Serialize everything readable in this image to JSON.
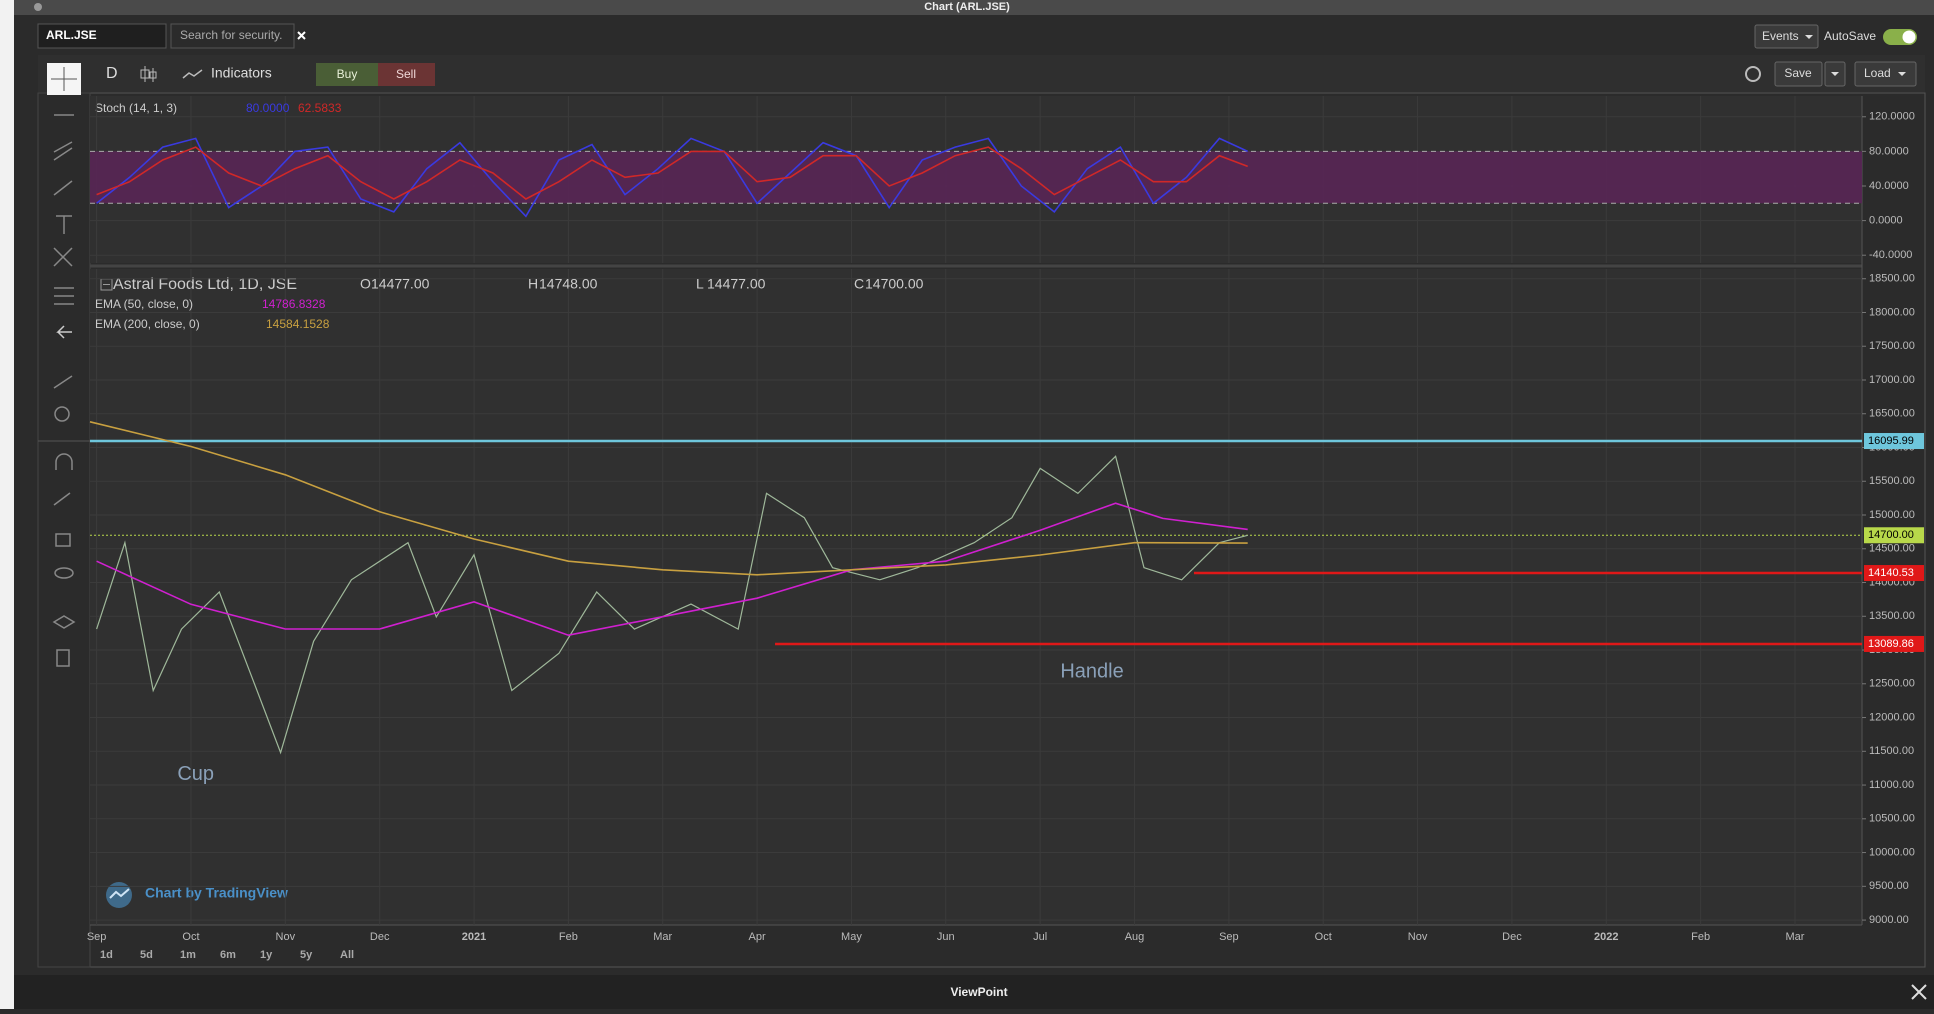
{
  "window": {
    "title": "Chart (ARL.JSE)"
  },
  "toolbar": {
    "symbol": "ARL.JSE",
    "search_placeholder": "Search for security.",
    "events": "Events",
    "autosave": "AutoSave",
    "interval": "D",
    "indicators": "Indicators",
    "buy": "Buy",
    "sell": "Sell",
    "save": "Save",
    "load": "Load"
  },
  "chart_data": [
    {
      "type": "line",
      "title": "Stoch (14, 1, 3)",
      "xlim": [
        -0.07,
        18.71
      ],
      "ylim": [
        -49,
        144
      ],
      "yticks": [
        {
          "value": 120,
          "label": "120.0000"
        },
        {
          "value": 80,
          "label": "80.0000"
        },
        {
          "value": 40,
          "label": "40.0000"
        },
        {
          "value": 0,
          "label": "0.0000"
        },
        {
          "value": -40,
          "label": "-40.0000"
        }
      ],
      "band": [
        20,
        80
      ],
      "band_color": "#5a2457",
      "grid": true,
      "series": [
        {
          "color": "#3a3ae0",
          "last_value_label": "80.0000",
          "x": [
            0,
            0.35,
            0.7,
            1.05,
            1.4,
            1.75,
            2.1,
            2.45,
            2.8,
            3.15,
            3.5,
            3.85,
            4.2,
            4.55,
            4.9,
            5.25,
            5.6,
            5.95,
            6.3,
            6.65,
            7.0,
            7.35,
            7.7,
            8.05,
            8.4,
            8.75,
            9.1,
            9.45,
            9.8,
            10.15,
            10.5,
            10.85,
            11.2,
            11.55,
            11.9,
            12.2
          ],
          "values": [
            20,
            50,
            85,
            95,
            15,
            40,
            80,
            85,
            25,
            10,
            60,
            90,
            45,
            5,
            70,
            88,
            30,
            60,
            95,
            80,
            20,
            55,
            90,
            75,
            15,
            70,
            85,
            95,
            40,
            10,
            60,
            85,
            20,
            50,
            95,
            80
          ]
        },
        {
          "color": "#d02828",
          "last_value_label": "62.5833",
          "x": [
            0,
            0.35,
            0.7,
            1.05,
            1.4,
            1.75,
            2.1,
            2.45,
            2.8,
            3.15,
            3.5,
            3.85,
            4.2,
            4.55,
            4.9,
            5.25,
            5.6,
            5.95,
            6.3,
            6.65,
            7.0,
            7.35,
            7.7,
            8.05,
            8.4,
            8.75,
            9.1,
            9.45,
            9.8,
            10.15,
            10.5,
            10.85,
            11.2,
            11.55,
            11.9,
            12.2
          ],
          "values": [
            30,
            45,
            70,
            85,
            55,
            40,
            60,
            75,
            45,
            25,
            45,
            70,
            55,
            25,
            45,
            70,
            50,
            55,
            80,
            80,
            45,
            50,
            75,
            75,
            40,
            55,
            75,
            85,
            60,
            30,
            50,
            70,
            45,
            45,
            75,
            62.5833
          ]
        }
      ]
    },
    {
      "type": "line",
      "title": "Astral Foods Ltd, 1D, JSE",
      "ohlc": [
        {
          "prefix": "O",
          "label": "14477.00"
        },
        {
          "prefix": "H",
          "label": "14748.00"
        },
        {
          "prefix": "L",
          "label": "14477.00"
        },
        {
          "prefix": "C",
          "label": "14700.00"
        }
      ],
      "xlim": [
        -0.07,
        18.71
      ],
      "ylim": [
        8927,
        18644
      ],
      "xticks": [
        {
          "value": 0,
          "label": "Sep"
        },
        {
          "value": 1,
          "label": "Oct"
        },
        {
          "value": 2,
          "label": "Nov"
        },
        {
          "value": 3,
          "label": "Dec"
        },
        {
          "value": 4,
          "label": "2021"
        },
        {
          "value": 5,
          "label": "Feb"
        },
        {
          "value": 6,
          "label": "Mar"
        },
        {
          "value": 7,
          "label": "Apr"
        },
        {
          "value": 8,
          "label": "May"
        },
        {
          "value": 9,
          "label": "Jun"
        },
        {
          "value": 10,
          "label": "Jul"
        },
        {
          "value": 11,
          "label": "Aug"
        },
        {
          "value": 12,
          "label": "Sep"
        },
        {
          "value": 13,
          "label": "Oct"
        },
        {
          "value": 14,
          "label": "Nov"
        },
        {
          "value": 15,
          "label": "Dec"
        },
        {
          "value": 16,
          "label": "2022"
        },
        {
          "value": 17,
          "label": "Feb"
        },
        {
          "value": 18,
          "label": "Mar"
        }
      ],
      "yticks": [
        {
          "value": 18500,
          "label": "18500.00"
        },
        {
          "value": 18000,
          "label": "18000.00"
        },
        {
          "value": 17500,
          "label": "17500.00"
        },
        {
          "value": 17000,
          "label": "17000.00"
        },
        {
          "value": 16500,
          "label": "16500.00"
        },
        {
          "value": 16000,
          "label": "16000.00"
        },
        {
          "value": 15500,
          "label": "15500.00"
        },
        {
          "value": 15000,
          "label": "15000.00"
        },
        {
          "value": 14500,
          "label": "14500.00"
        },
        {
          "value": 14000,
          "label": "14000.00"
        },
        {
          "value": 13500,
          "label": "13500.00"
        },
        {
          "value": 13000,
          "label": "13000.00"
        },
        {
          "value": 12500,
          "label": "12500.00"
        },
        {
          "value": 12000,
          "label": "12000.00"
        },
        {
          "value": 11500,
          "label": "11500.00"
        },
        {
          "value": 11000,
          "label": "11000.00"
        },
        {
          "value": 10500,
          "label": "10500.00"
        },
        {
          "value": 10000,
          "label": "10000.00"
        },
        {
          "value": 9500,
          "label": "9500.00"
        },
        {
          "value": 9000,
          "label": "9000.00"
        }
      ],
      "grid": true,
      "series": [
        {
          "color": "#9fb89a",
          "x": [
            0,
            0.3,
            0.6,
            0.9,
            1.3,
            1.7,
            1.95,
            2.3,
            2.7,
            3.3,
            3.6,
            4.0,
            4.4,
            4.9,
            5.3,
            5.7,
            6.3,
            6.8,
            7.1,
            7.5,
            7.8,
            8.3,
            8.7,
            9.3,
            9.7,
            10.0,
            10.4,
            10.8,
            11.1,
            11.5,
            11.9,
            12.2
          ],
          "values": [
            13310,
            14590,
            12400,
            13310,
            13860,
            12400,
            11480,
            13130,
            14040,
            14590,
            13490,
            14410,
            12400,
            12950,
            13860,
            13310,
            13680,
            13310,
            15320,
            14960,
            14220,
            14040,
            14220,
            14590,
            14960,
            15690,
            15320,
            15870,
            14220,
            14040,
            14590,
            14700
          ]
        },
        {
          "name": "EMA (50, close, 0)",
          "color": "#d020d0",
          "last_value_label": "14786.8328",
          "x": [
            0,
            1,
            2,
            3,
            4,
            5,
            6,
            7,
            8,
            9,
            10,
            10.8,
            11.3,
            12.2
          ],
          "values": [
            14316,
            13677,
            13311,
            13311,
            13713,
            13220,
            13494,
            13768,
            14188,
            14316,
            14773,
            15175,
            14950,
            14786.8328
          ]
        },
        {
          "name": "EMA (200, close, 0)",
          "color": "#c8a040",
          "last_value_label": "14584.1528",
          "x": [
            -0.07,
            1,
            2,
            3,
            4,
            5,
            6,
            7,
            8,
            9,
            10,
            11,
            12.2
          ],
          "values": [
            16380,
            16015,
            15595,
            15047,
            14645,
            14316,
            14188,
            14115,
            14188,
            14261,
            14407,
            14590,
            14584.1528
          ]
        }
      ],
      "levels": [
        {
          "price": 16095.99,
          "label": "16095.99",
          "color": "#6ec6dc"
        },
        {
          "price": 14700,
          "label": "14700.00",
          "color": "#b8d84a",
          "dotted": true
        },
        {
          "price": 14140.53,
          "label": "14140.53",
          "color": "#e01818",
          "start": 11.63
        },
        {
          "price": 13089.86,
          "label": "13089.86",
          "color": "#e01818",
          "start": 7.19
        }
      ],
      "annotations": [
        {
          "text": "Cup",
          "x": 1.05,
          "y": 11156
        },
        {
          "text": "Handle",
          "x": 10.55,
          "y": 12672
        }
      ]
    }
  ],
  "watermark": "Chart by TradingView",
  "ranges": [
    "1d",
    "5d",
    "1m",
    "6m",
    "1y",
    "5y",
    "All"
  ],
  "footer": {
    "title": "ViewPoint"
  }
}
